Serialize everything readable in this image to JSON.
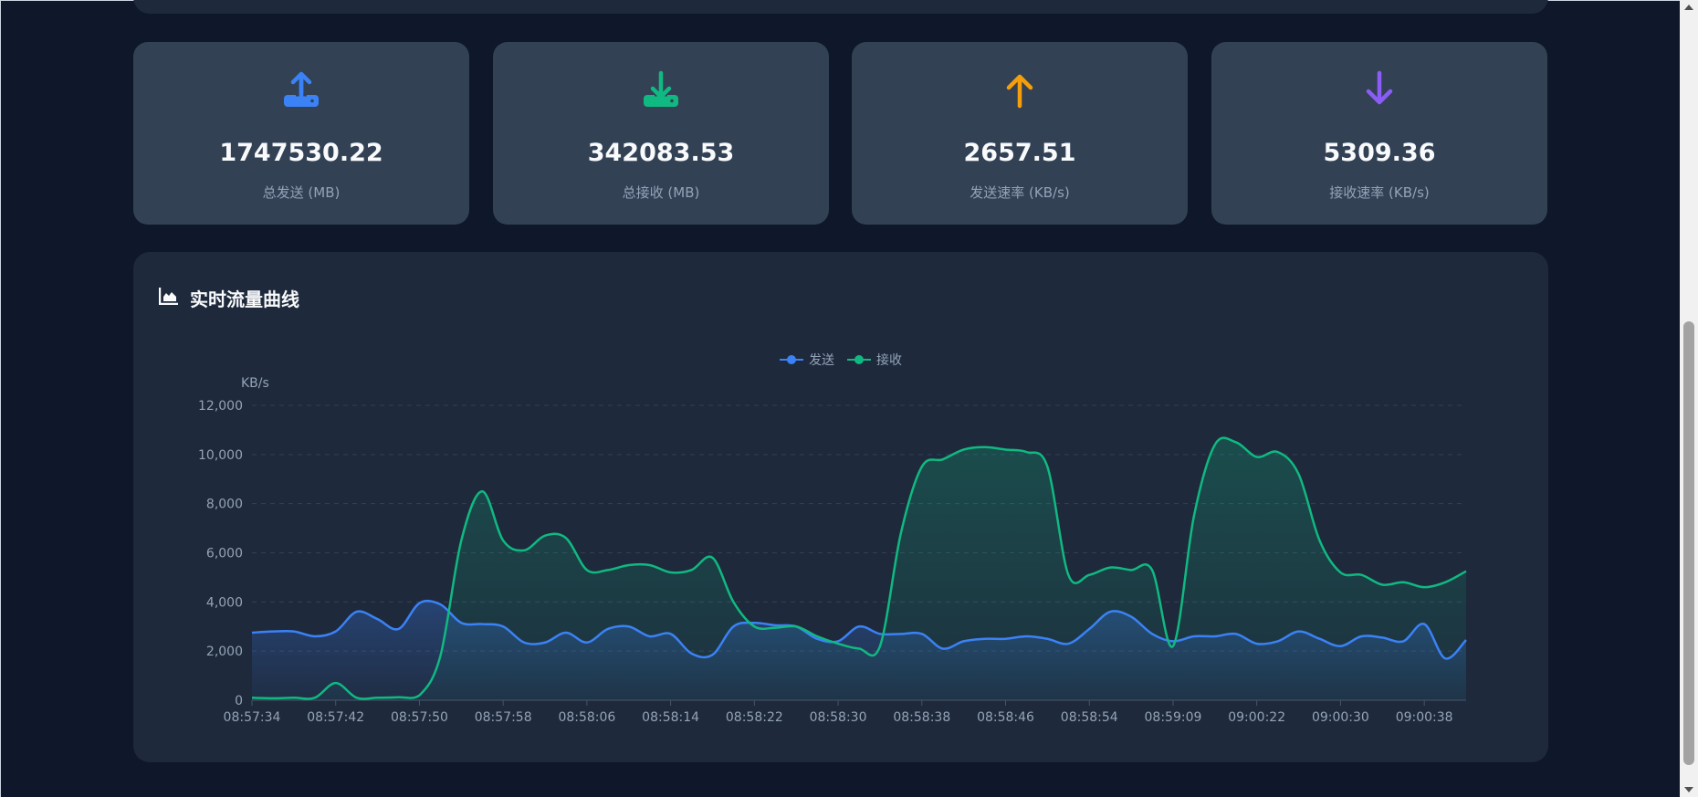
{
  "stats": [
    {
      "value": "1747530.22",
      "label": "总发送 (MB)",
      "icon": "upload-icon",
      "color": "#3b82f6"
    },
    {
      "value": "342083.53",
      "label": "总接收 (MB)",
      "icon": "download-icon",
      "color": "#10b981"
    },
    {
      "value": "2657.51",
      "label": "发送速率 (KB/s)",
      "icon": "arrow-up-icon",
      "color": "#f59e0b"
    },
    {
      "value": "5309.36",
      "label": "接收速率 (KB/s)",
      "icon": "arrow-down-icon",
      "color": "#8b5cf6"
    }
  ],
  "chart_title": "实时流量曲线",
  "chart_data": {
    "type": "area",
    "title": "实时流量曲线",
    "ylabel": "KB/s",
    "ylim": [
      0,
      12000
    ],
    "yticks": [
      "0",
      "2,000",
      "4,000",
      "6,000",
      "8,000",
      "10,000",
      "12,000"
    ],
    "xtick_labels": [
      "08:57:34",
      "08:57:42",
      "08:57:50",
      "08:57:58",
      "08:58:06",
      "08:58:14",
      "08:58:22",
      "08:58:30",
      "08:58:38",
      "08:58:46",
      "08:58:54",
      "08:59:09",
      "09:00:22",
      "09:00:30",
      "09:00:38"
    ],
    "legend": "top-center",
    "grid": true,
    "series": [
      {
        "name": "发送",
        "color": "#3b82f6",
        "values": [
          2750,
          2800,
          2800,
          2600,
          2800,
          3600,
          3300,
          2900,
          3950,
          3900,
          3150,
          3100,
          3000,
          2350,
          2350,
          2750,
          2350,
          2900,
          3000,
          2600,
          2700,
          1900,
          1850,
          3000,
          3150,
          3050,
          3000,
          2500,
          2400,
          3000,
          2700,
          2700,
          2700,
          2100,
          2400,
          2500,
          2500,
          2600,
          2500,
          2300,
          2900,
          3600,
          3400,
          2700,
          2400,
          2600,
          2600,
          2700,
          2300,
          2400,
          2800,
          2500,
          2200,
          2600,
          2550,
          2400,
          3100,
          1700,
          2450
        ]
      },
      {
        "name": "接收",
        "color": "#10b981",
        "values": [
          100,
          80,
          100,
          100,
          700,
          100,
          100,
          120,
          200,
          1800,
          6500,
          8500,
          6500,
          6100,
          6700,
          6600,
          5300,
          5300,
          5500,
          5500,
          5200,
          5300,
          5800,
          4000,
          3000,
          2950,
          3000,
          2600,
          2300,
          2100,
          2200,
          6800,
          9500,
          9800,
          10200,
          10300,
          10200,
          10100,
          9500,
          5100,
          5100,
          5400,
          5300,
          5300,
          2200,
          7500,
          10400,
          10500,
          9900,
          10100,
          9200,
          6500,
          5200,
          5100,
          4700,
          4800,
          4600,
          4800,
          5250
        ]
      }
    ]
  }
}
